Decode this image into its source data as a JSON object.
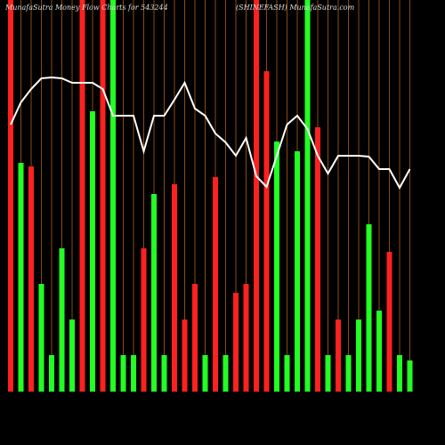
{
  "chart_data": {
    "type": "bar",
    "title": "MunafaSutra  Money Flow  Charts for 543244",
    "subtitle": "(SHINEFASH) MunafaSutra.com",
    "ylim": [
      0,
      440
    ],
    "bars": {
      "values": [
        440,
        257,
        253,
        121,
        41,
        161,
        81,
        440,
        315,
        440,
        440,
        41,
        41,
        161,
        222,
        41,
        233,
        81,
        121,
        41,
        241,
        41,
        111,
        121,
        440,
        360,
        281,
        41,
        270,
        440,
        297,
        41,
        81,
        41,
        81,
        188,
        91,
        157,
        41,
        35
      ],
      "colors": [
        "#ff2020",
        "#22ff22",
        "#ff2020",
        "#22ff22",
        "#22ff22",
        "#22ff22",
        "#22ff22",
        "#ff2020",
        "#22ff22",
        "#ff2020",
        "#22ff22",
        "#22ff22",
        "#22ff22",
        "#ff2020",
        "#22ff22",
        "#22ff22",
        "#ff2020",
        "#ff2020",
        "#ff2020",
        "#22ff22",
        "#ff2020",
        "#22ff22",
        "#ff2020",
        "#ff2020",
        "#ff2020",
        "#ff2020",
        "#22ff22",
        "#22ff22",
        "#22ff22",
        "#22ff22",
        "#ff2020",
        "#22ff22",
        "#ff2020",
        "#22ff22",
        "#22ff22",
        "#22ff22",
        "#22ff22",
        "#ff2020",
        "#22ff22",
        "#22ff22"
      ]
    },
    "line": {
      "color": "#ffffff",
      "values": [
        300,
        325,
        340,
        352,
        353,
        352,
        347,
        347,
        347,
        340,
        310,
        310,
        310,
        270,
        310,
        310,
        328,
        347,
        318,
        310,
        290,
        280,
        265,
        285,
        242,
        230,
        265,
        300,
        310,
        295,
        265,
        245,
        265,
        265,
        265,
        264,
        250,
        250,
        229,
        250
      ]
    },
    "grid_color": "#8b4a13"
  }
}
